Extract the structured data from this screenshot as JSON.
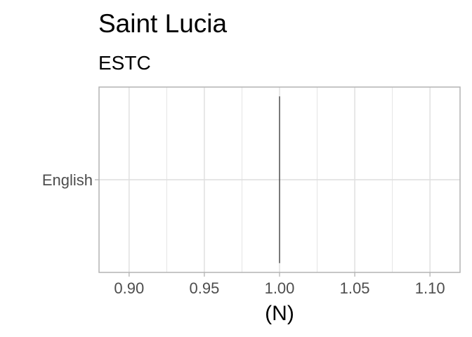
{
  "chart_data": {
    "type": "bar",
    "orientation": "horizontal",
    "title": "Saint Lucia",
    "subtitle": "ESTC",
    "xlabel": "(N)",
    "ylabel": "",
    "categories": [
      "English"
    ],
    "values": [
      1
    ],
    "xlim": [
      0.88,
      1.12
    ],
    "xticks": [
      0.9,
      0.95,
      1.0,
      1.05,
      1.1
    ],
    "xtick_labels": [
      "0.90",
      "0.95",
      "1.00",
      "1.05",
      "1.10"
    ],
    "grid": true,
    "legend": "none",
    "colors": {
      "bar": "#000000",
      "grid": "#dedede",
      "panel_border": "#b3b3b3",
      "tick_text": "#4d4d4d"
    }
  }
}
